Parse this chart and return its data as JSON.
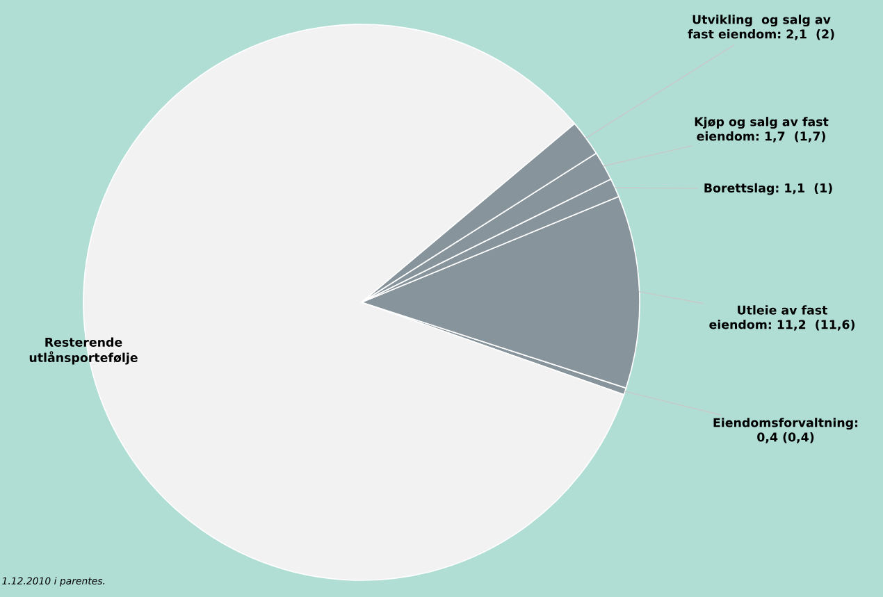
{
  "chart_data": {
    "type": "pie",
    "categories": [
      "Eiendomsforvaltning:\n0,4 (0,4)",
      "Utleie av fast\neiendom: 11,2  (11,6)",
      "Borettslag: 1,1  (1)",
      "Kjøp og salg av fast\neiendom: 1,7  (1,7)",
      "Utvikling  og salg av\nfast eiendom: 2,1  (2)",
      "Resterende\nutlånsportefølje"
    ],
    "values": [
      0.4,
      11.2,
      1.1,
      1.7,
      2.1,
      83.5
    ],
    "colors": [
      "#87949c",
      "#87949c",
      "#87949c",
      "#87949c",
      "#87949c",
      "#f2f2f2"
    ],
    "annotations": [
      "1.12.2010 i parentes."
    ],
    "legend": false
  }
}
